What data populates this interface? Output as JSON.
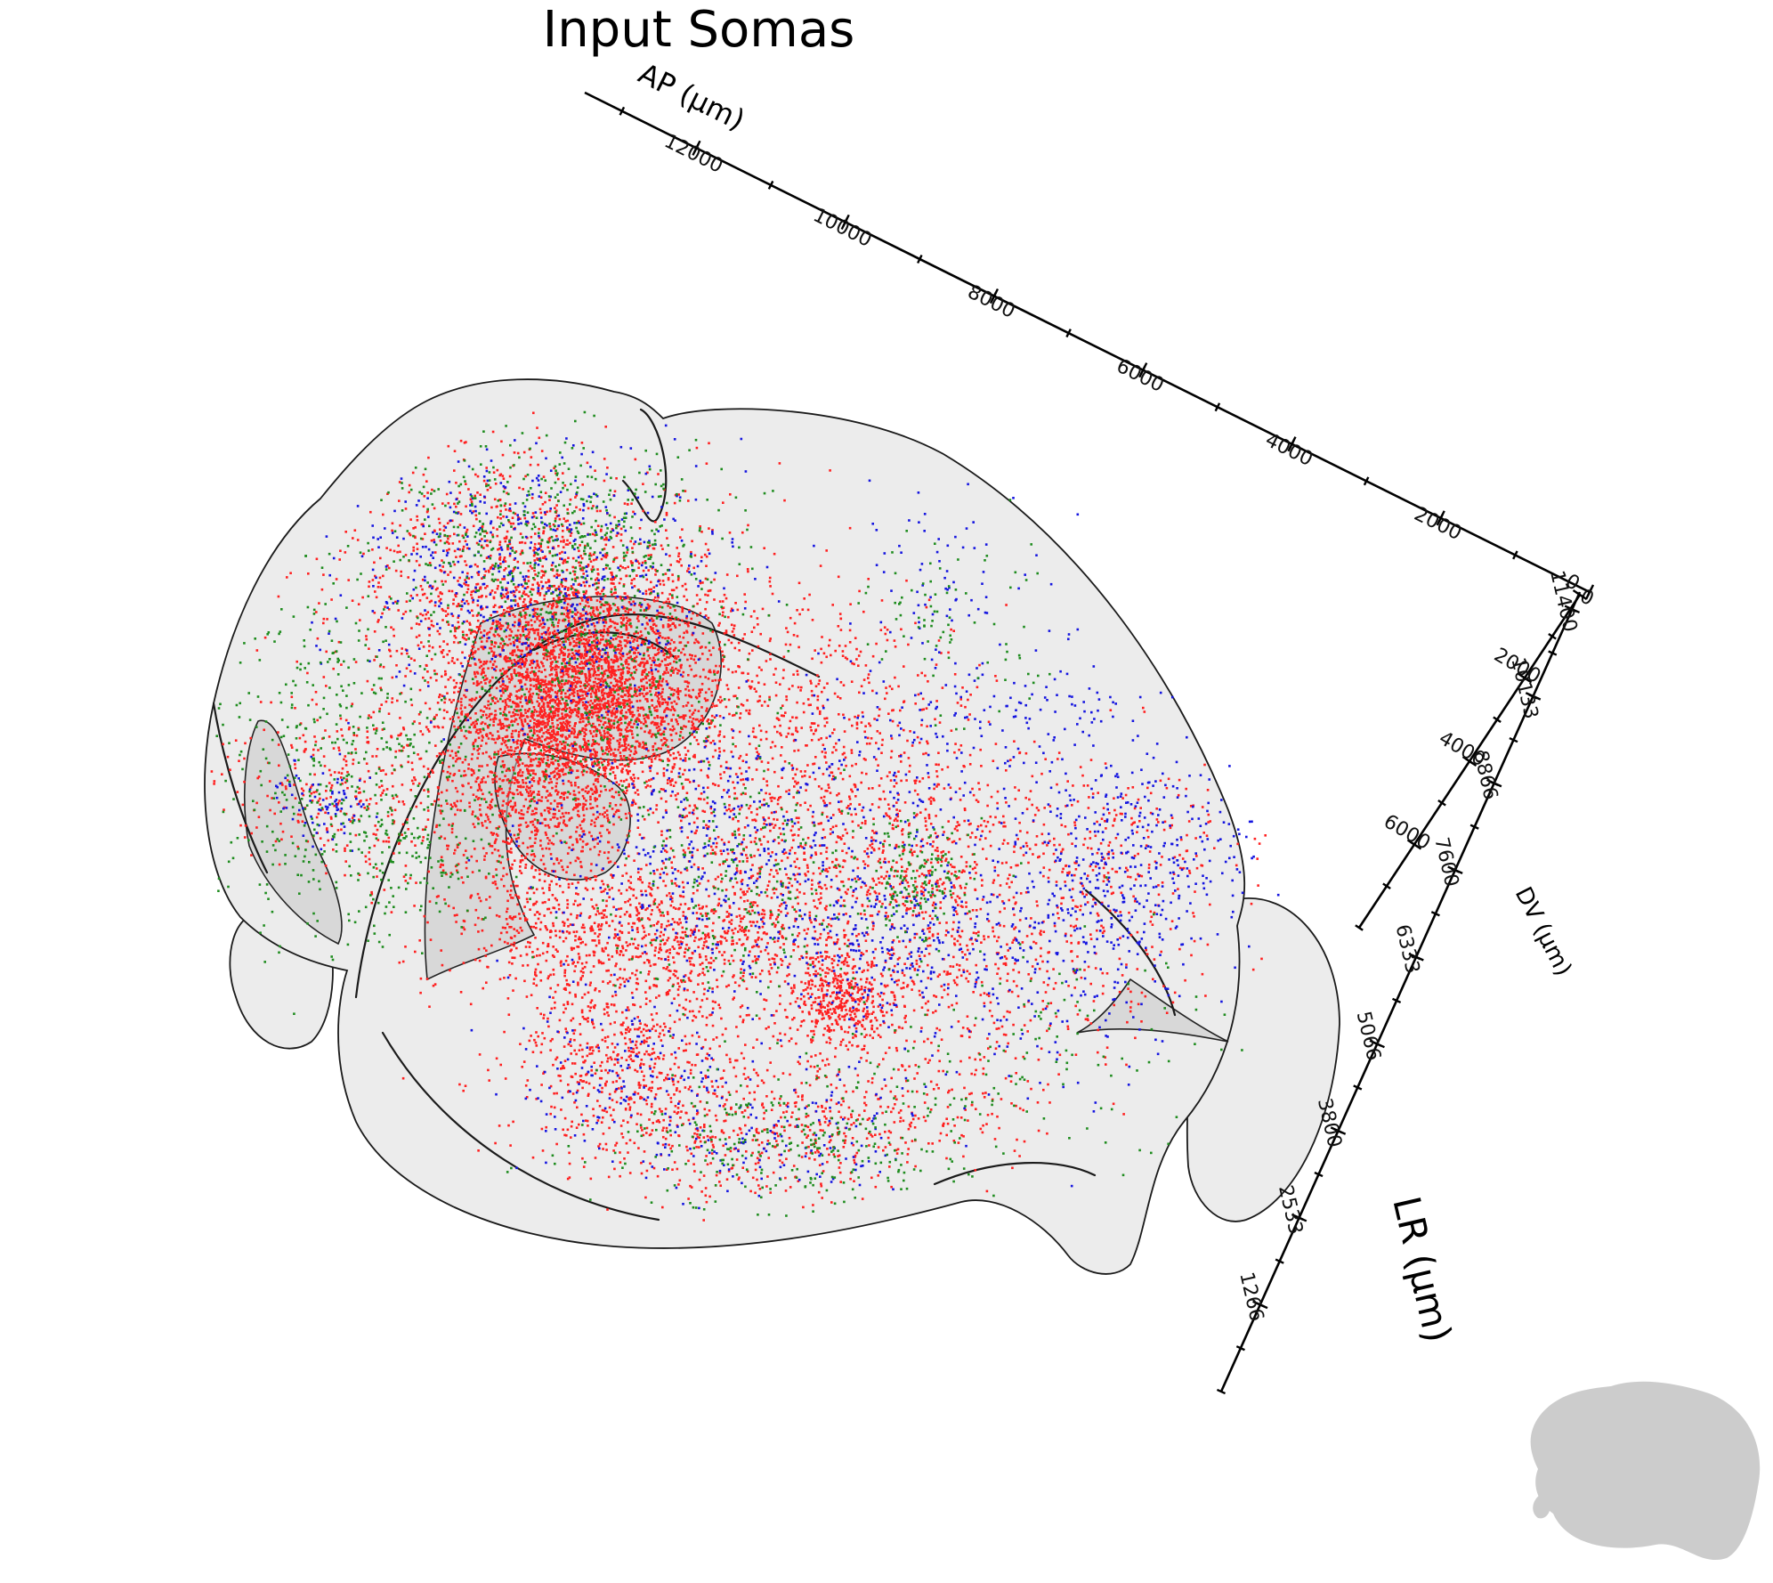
{
  "chart_data": {
    "type": "scatter",
    "title": "Input Somas",
    "axes": {
      "ap": {
        "label": "AP (μm)",
        "ticks": [
          {
            "value": 0,
            "label": "0"
          },
          {
            "value": 2000,
            "label": "2000"
          },
          {
            "value": 4000,
            "label": "4000"
          },
          {
            "value": 6000,
            "label": "6000"
          },
          {
            "value": 8000,
            "label": "8000"
          },
          {
            "value": 10000,
            "label": "10000"
          },
          {
            "value": 12000,
            "label": "12000"
          }
        ],
        "range": [
          0,
          13500
        ]
      },
      "dv": {
        "label": "DV (μm)",
        "ticks": [
          {
            "value": 0,
            "label": "0"
          },
          {
            "value": 2000,
            "label": "2000"
          },
          {
            "value": 4000,
            "label": "4000"
          },
          {
            "value": 6000,
            "label": "6000"
          }
        ],
        "range": [
          0,
          8000
        ]
      },
      "lr": {
        "label": "LR (μm)",
        "ticks": [
          {
            "value": 11400,
            "label": "11400"
          },
          {
            "value": 10133,
            "label": "10133"
          },
          {
            "value": 8866,
            "label": "8866"
          },
          {
            "value": 7600,
            "label": "7600"
          },
          {
            "value": 6333,
            "label": "6333"
          },
          {
            "value": 5066,
            "label": "5066"
          },
          {
            "value": 3800,
            "label": "3800"
          },
          {
            "value": 2533,
            "label": "2533"
          },
          {
            "value": 1266,
            "label": "1266"
          }
        ],
        "range": [
          0,
          11400
        ]
      }
    },
    "series_colors": [
      "#ff2020",
      "#1515e0",
      "#1e8c1e"
    ],
    "grid": false,
    "legend": "none"
  }
}
